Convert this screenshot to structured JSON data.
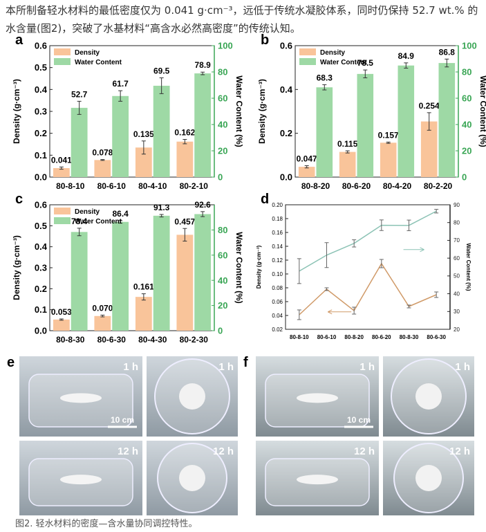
{
  "text": "本所制备轻水材料的最低密度仅为 0.041 g·cm⁻³，远低于传统水凝胶体系，同时仍保持 52.7 wt.% 的水含量(图2)，突破了水基材料“高含水必然高密度”的传统认知。",
  "caption": "图2. 轻水材料的密度—含水量协同调控特性。",
  "chart_data": [
    {
      "type": "bar",
      "panel": "a",
      "y_label": "Density (g·cm⁻³)",
      "y2_label": "Water Content (%)",
      "legend": "top-left",
      "grid": false,
      "categories": [
        "80-8-10",
        "80-6-10",
        "80-4-10",
        "80-2-10"
      ],
      "ylim": [
        0,
        0.6
      ],
      "yticks": [
        {
          "value": 0,
          "label": "0.0"
        },
        0.1,
        0.2,
        0.3,
        0.4,
        0.5,
        0.6
      ],
      "y2lim": [
        0,
        100
      ],
      "y2ticks": [
        0,
        20,
        40,
        60,
        80,
        100
      ],
      "series": [
        {
          "name": "Density",
          "color": "#f9c49a",
          "values": [
            0.041,
            0.078,
            0.135,
            0.162
          ],
          "errors": [
            0.005,
            0.002,
            0.03,
            0.01
          ]
        },
        {
          "name": "Water Content",
          "color": "#9ed9a5",
          "axis": "y2",
          "values": [
            52.7,
            61.7,
            69.5,
            78.9
          ],
          "errors": [
            5,
            4,
            6,
            1
          ]
        }
      ]
    },
    {
      "type": "bar",
      "panel": "b",
      "y_label": "Density (g·cm⁻³)",
      "y2_label": "Water Content (%)",
      "legend": "top-left",
      "grid": false,
      "categories": [
        "80-8-20",
        "80-6-20",
        "80-4-20",
        "80-2-20"
      ],
      "ylim": [
        0,
        0.6
      ],
      "yticks": [
        {
          "value": 0,
          "label": "0.0"
        },
        0.2,
        0.4,
        0.6
      ],
      "y2lim": [
        0,
        100
      ],
      "y2ticks": [
        0,
        20,
        40,
        60,
        80,
        100
      ],
      "series": [
        {
          "name": "Density",
          "color": "#f9c49a",
          "values": [
            0.047,
            0.115,
            0.157,
            0.254
          ],
          "errors": [
            0.005,
            0.005,
            0.003,
            0.04
          ]
        },
        {
          "name": "Water Content",
          "color": "#9ed9a5",
          "axis": "y2",
          "values": [
            68.3,
            78.5,
            84.9,
            86.8
          ],
          "errors": [
            2,
            3,
            2,
            3
          ]
        }
      ]
    },
    {
      "type": "bar",
      "panel": "c",
      "y_label": "Density (g·cm⁻³)",
      "y2_label": "Water Content (%)",
      "legend": "top-left",
      "grid": false,
      "categories": [
        "80-8-30",
        "80-6-30",
        "80-4-30",
        "80-2-30"
      ],
      "ylim": [
        0,
        0.6
      ],
      "yticks": [
        {
          "value": 0,
          "label": "0.0"
        },
        0.1,
        0.2,
        0.3,
        0.4,
        0.5,
        0.6
      ],
      "y2lim": [
        0,
        100
      ],
      "y2ticks": [
        0,
        20,
        40,
        60,
        80
      ],
      "series": [
        {
          "name": "Density",
          "color": "#f9c49a",
          "values": [
            0.053,
            0.07,
            0.161,
            0.457
          ],
          "value_labels": [
            "0.053",
            "0.070",
            "0.161",
            "0.457"
          ],
          "errors": [
            0.003,
            0.004,
            0.015,
            0.03
          ]
        },
        {
          "name": "Water Content",
          "color": "#9ed9a5",
          "axis": "y2",
          "values": [
            78.4,
            86.4,
            91.3,
            92.6
          ],
          "errors": [
            3,
            1,
            1,
            2
          ]
        }
      ]
    },
    {
      "type": "line",
      "panel": "d",
      "y_label": "Density (g·cm⁻³)",
      "y2_label": "Water Content (%)",
      "grid": false,
      "categories": [
        "80-8-10",
        "80-6-10",
        "80-8-20",
        "80-6-20",
        "80-8-30",
        "80-6-30"
      ],
      "ylim": [
        0.02,
        0.2
      ],
      "yticks": [
        0.02,
        0.04,
        0.06,
        0.08,
        {
          "value": 0.1,
          "label": "0.10"
        },
        0.12,
        0.14,
        0.16,
        0.18,
        {
          "value": 0.2,
          "label": "0.20"
        }
      ],
      "y2lim": [
        20,
        90
      ],
      "y2ticks": [
        20,
        30,
        40,
        50,
        60,
        70,
        80,
        90
      ],
      "series": [
        {
          "color": "#d09a68",
          "values": [
            0.041,
            0.078,
            0.047,
            0.115,
            0.053,
            0.07
          ],
          "errors": [
            0.007,
            0.002,
            0.005,
            0.006,
            0.002,
            0.004
          ]
        },
        {
          "color": "#8cc3b5",
          "axis": "y2",
          "values": [
            52.7,
            61.7,
            68.3,
            78.5,
            78.4,
            86.4
          ],
          "errors": [
            7,
            7,
            2,
            3,
            3,
            1
          ]
        }
      ]
    }
  ],
  "photos": [
    {
      "panel": "e",
      "labels": [
        "1 h",
        "1 h",
        "12 h",
        "12 h"
      ],
      "scale_bar": "10 cm"
    },
    {
      "panel": "f",
      "labels": [
        "1 h",
        "1 h",
        "12 h",
        "12 h"
      ],
      "scale_bar": "10 cm"
    }
  ]
}
